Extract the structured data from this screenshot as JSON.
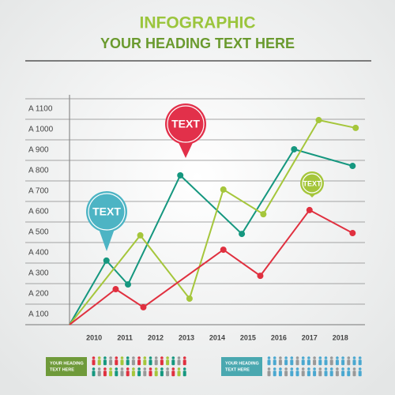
{
  "chart_data": {
    "type": "line",
    "title": "INFOGRAPHIC",
    "subtitle": "YOUR HEADING TEXT HERE",
    "xlim": [
      2009.2,
      2018.7
    ],
    "xticks": [
      2010,
      2011,
      2012,
      2013,
      2014,
      2015,
      2016,
      2017,
      2018
    ],
    "ylim": [
      0,
      1100
    ],
    "yticks": [
      {
        "value": 100,
        "label": "A 100"
      },
      {
        "value": 200,
        "label": "A 200"
      },
      {
        "value": 300,
        "label": "A 300"
      },
      {
        "value": 400,
        "label": "A 400"
      },
      {
        "value": 500,
        "label": "A 500"
      },
      {
        "value": 600,
        "label": "A 600"
      },
      {
        "value": 700,
        "label": "A 700"
      },
      {
        "value": 800,
        "label": "A 800"
      },
      {
        "value": 900,
        "label": "A 900"
      },
      {
        "value": 1000,
        "label": "A 1000"
      },
      {
        "value": 1100,
        "label": "A 1100"
      }
    ],
    "grid": true,
    "series": [
      {
        "color": "#15977f",
        "x": [
          2009.2,
          2010.4,
          2011.1,
          2012.8,
          2014.8,
          2016.5,
          2018.4
        ],
        "values": [
          0,
          312,
          196,
          727,
          442,
          854,
          773
        ]
      },
      {
        "color": "#a5c63b",
        "x": [
          2009.2,
          2011.5,
          2013.1,
          2014.2,
          2015.5,
          2017.3,
          2018.5
        ],
        "values": [
          0,
          435,
          127,
          658,
          538,
          996,
          958
        ]
      },
      {
        "color": "#e0303f",
        "x": [
          2009.2,
          2010.7,
          2011.6,
          2014.2,
          2015.4,
          2017.0,
          2018.4
        ],
        "values": [
          0,
          173,
          85,
          365,
          238,
          558,
          446
        ]
      }
    ],
    "annotations": [
      {
        "text": "TEXT",
        "color": "#4db4c4"
      },
      {
        "text": "TEXT",
        "color": "#e2304a"
      },
      {
        "text": "TEXT",
        "color": "#a5c63b"
      }
    ],
    "footer": [
      {
        "lines": [
          "YOUR HEADING",
          "TEXT HERE"
        ],
        "color": "#6f9a3a"
      },
      {
        "lines": [
          "YOUR HEADING",
          "TEXT HERE"
        ],
        "color": "#4aa8b0"
      }
    ]
  }
}
